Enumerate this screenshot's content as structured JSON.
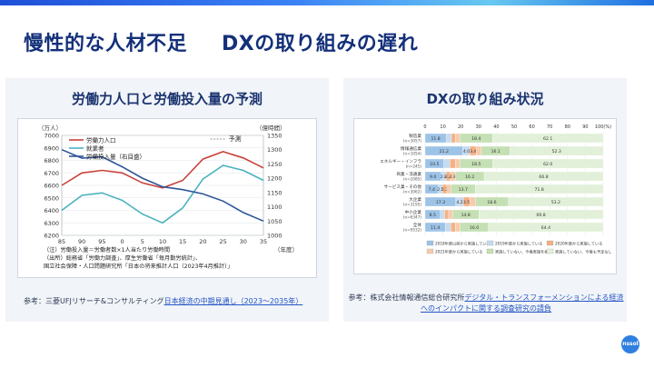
{
  "slide": {
    "title_left": "慢性的な人材不足",
    "title_right": "DXの取り組みの遅れ"
  },
  "left_panel": {
    "heading": "労働力人口と労働投入量の予測",
    "reference_prefix": "参考：三菱UFJリサーチ&コンサルティング",
    "reference_link": "日本経済の中期見通し（2023～2035年）",
    "chart_data": {
      "type": "line",
      "title": "",
      "y_left_label": "（万人）",
      "y_right_label": "（億時間）",
      "x_label": "（年度）",
      "forecast_label": "予測",
      "x": [
        85,
        90,
        95,
        0,
        5,
        10,
        15,
        20,
        25,
        30,
        35
      ],
      "x_tick_labels": [
        "85",
        "90",
        "95",
        "0",
        "5",
        "10",
        "15",
        "20",
        "25",
        "30",
        "35"
      ],
      "y_left_ticks": [
        "7000",
        "6900",
        "6800",
        "6700",
        "6600",
        "6500",
        "6400",
        "6300",
        "6200"
      ],
      "y_right_ticks": [
        "1350",
        "1300",
        "1250",
        "1200",
        "1150",
        "1100",
        "1050",
        "1000"
      ],
      "ylim_left": [
        6200,
        7000
      ],
      "ylim_right": [
        1000,
        1350
      ],
      "series": [
        {
          "name": "労働力人口",
          "axis": "left",
          "color": "#c9423a",
          "values": [
            6600,
            6700,
            6720,
            6700,
            6620,
            6580,
            6640,
            6810,
            6870,
            6820,
            6740
          ]
        },
        {
          "name": "就業者",
          "axis": "left",
          "color": "#49b3be",
          "values": [
            6400,
            6520,
            6540,
            6480,
            6370,
            6300,
            6420,
            6650,
            6760,
            6720,
            6640
          ]
        },
        {
          "name": "労働投入量（右目盛）",
          "axis": "right",
          "color": "#2f5597",
          "values": [
            1300,
            1270,
            1275,
            1240,
            1200,
            1170,
            1160,
            1145,
            1120,
            1080,
            1050
          ]
        }
      ],
      "notes": [
        "（注）労働投入量＝労働者数×1人当たり労働時間",
        "（出所）総務省「労働力調査」、厚生労働省「毎月勤労統計」、",
        "国立社会保障・人口問題研究所「日本の将来推計人口（2023年4月推計）」"
      ]
    }
  },
  "right_panel": {
    "heading": "DXの取り組み状況",
    "reference_prefix": "参考：株式会社情報通信総合研究所",
    "reference_link": "デジタル・トランスフォーメンションによる経済へのインパクトに関する調査研究の請負",
    "chart_data": {
      "type": "bar",
      "stacked": "percent",
      "x_ticks": [
        "0",
        "10",
        "20",
        "30",
        "40",
        "50",
        "60",
        "70",
        "80",
        "90",
        "100(%)"
      ],
      "xlim": [
        0,
        100
      ],
      "categories": [
        {
          "name": "製造業",
          "n": "(n=3057)"
        },
        {
          "name": "情報通信業",
          "n": "(n=1054)"
        },
        {
          "name": "エネルギー・インフラ",
          "n": "(n=245)"
        },
        {
          "name": "商業・流通業",
          "n": "(n=2085)"
        },
        {
          "name": "サービス業・その他",
          "n": "(n=3062)"
        },
        {
          "name": "大企業",
          "n": "(n=3195)"
        },
        {
          "name": "中小企業",
          "n": "(n=6347)"
        },
        {
          "name": "全体",
          "n": "(n=9532)"
        }
      ],
      "series": [
        {
          "name": "2018年度以前から実施している",
          "color": "#9dc3e6",
          "values": [
            11.8,
            21.2,
            10.5,
            9.0,
            7.4,
            17.3,
            8.5,
            11.4
          ]
        },
        {
          "name": "2019年度から実施している",
          "color": "#c6dbef",
          "values": [
            3.0,
            4.0,
            3.5,
            2.8,
            2.5,
            4.2,
            2.5,
            3.1
          ]
        },
        {
          "name": "2020年度から実施している",
          "color": "#f4b183",
          "values": [
            2.2,
            3.4,
            3.0,
            2.4,
            2.2,
            3.5,
            2.1,
            2.5
          ]
        },
        {
          "name": "2021年度から実施している",
          "color": "#f8cbad",
          "values": [
            2.5,
            3.0,
            2.5,
            2.8,
            2.4,
            3.2,
            2.3,
            2.6
          ]
        },
        {
          "name": "実施していない、今後実施を検討",
          "color": "#c5e0b4",
          "values": [
            18.4,
            16.1,
            18.5,
            16.2,
            13.7,
            18.6,
            14.8,
            16.0
          ]
        },
        {
          "name": "実施していない、今後も予定なし",
          "color": "#e2f0d9",
          "values": [
            62.1,
            52.3,
            62.0,
            66.8,
            71.8,
            53.2,
            69.8,
            64.4
          ]
        }
      ],
      "value_labels": [
        [
          "11.8",
          "",
          "",
          "",
          "18.4",
          "62.1"
        ],
        [
          "21.2",
          "4.0",
          "3.4",
          "",
          "16.1",
          "52.3"
        ],
        [
          "10.5",
          "",
          "",
          "",
          "18.5",
          "62.0"
        ],
        [
          "9.0",
          "2.8",
          "2.4",
          "2.8",
          "16.2",
          "66.8"
        ],
        [
          "7.4",
          "2.5",
          "2.2",
          "",
          "13.7",
          "71.8"
        ],
        [
          "17.3",
          "4.2",
          "3.5",
          "",
          "18.6",
          "53.2"
        ],
        [
          "8.5",
          "",
          "",
          "",
          "14.8",
          "69.8"
        ],
        [
          "11.4",
          "",
          "",
          "",
          "16.0",
          "64.4"
        ]
      ]
    }
  },
  "logo": {
    "text": "nssol"
  }
}
